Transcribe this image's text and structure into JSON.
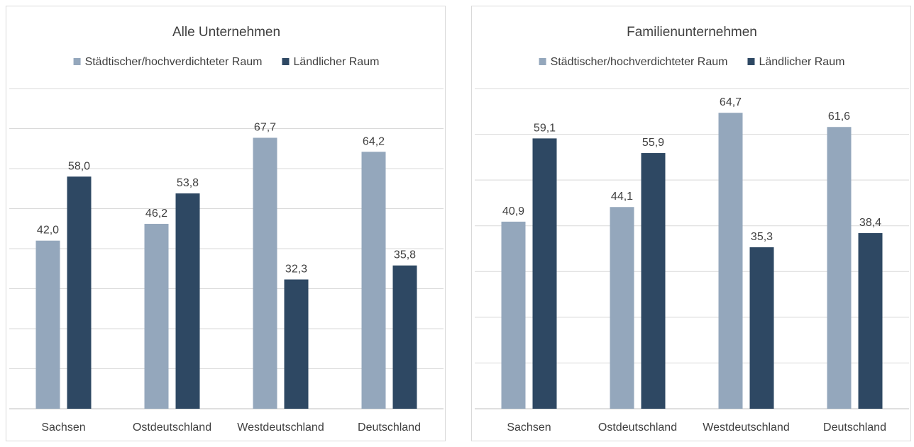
{
  "colors": {
    "urban": "#94a7bc",
    "rural": "#2e4863",
    "grid": "#d9d9d9",
    "axis": "#bfbfbf",
    "text": "#404040"
  },
  "chart_data": [
    {
      "type": "bar",
      "title": "Alle Unternehmen",
      "categories": [
        "Sachsen",
        "Ostdeutschland",
        "Westdeutschland",
        "Deutschland"
      ],
      "series": [
        {
          "name": "Städtischer/hochverdichteter Raum",
          "values": [
            42.0,
            46.2,
            67.7,
            64.2
          ],
          "labels": [
            "42,0",
            "46,2",
            "67,7",
            "64,2"
          ]
        },
        {
          "name": "Ländlicher Raum",
          "values": [
            58.0,
            53.8,
            32.3,
            35.8
          ],
          "labels": [
            "58,0",
            "53,8",
            "32,3",
            "35,8"
          ]
        }
      ],
      "ylim": [
        0,
        80
      ],
      "gridlines": 8,
      "legend": "top-center",
      "grid": true
    },
    {
      "type": "bar",
      "title": "Familienunternehmen",
      "categories": [
        "Sachsen",
        "Ostdeutschland",
        "Westdeutschland",
        "Deutschland"
      ],
      "series": [
        {
          "name": "Städtischer/hochverdichteter Raum",
          "values": [
            40.9,
            44.1,
            64.7,
            61.6
          ],
          "labels": [
            "40,9",
            "44,1",
            "64,7",
            "61,6"
          ]
        },
        {
          "name": "Ländlicher Raum",
          "values": [
            59.1,
            55.9,
            35.3,
            38.4
          ],
          "labels": [
            "59,1",
            "55,9",
            "35,3",
            "38,4"
          ]
        }
      ],
      "ylim": [
        0,
        70
      ],
      "gridlines": 7,
      "legend": "top-center",
      "grid": true
    }
  ]
}
